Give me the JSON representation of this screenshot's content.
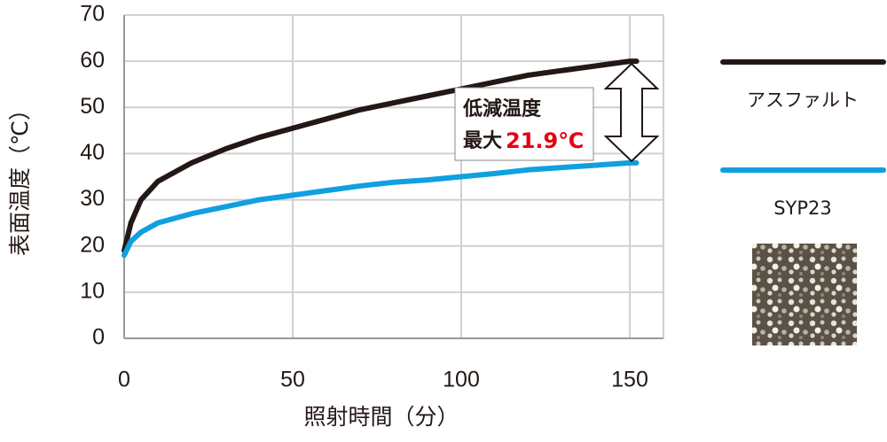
{
  "chart_data": {
    "type": "line",
    "y_label": "表面温度（℃）",
    "x_label": "照射時間（分）",
    "annotations": [
      "低減温度",
      "最大",
      "21.9℃"
    ],
    "x": [
      0,
      2,
      5,
      10,
      20,
      30,
      40,
      50,
      60,
      70,
      80,
      90,
      100,
      110,
      120,
      130,
      140,
      150,
      152
    ],
    "series": [
      {
        "name": "アスファルト",
        "color": "#231815",
        "values": [
          19,
          25,
          30,
          34,
          38,
          41,
          43.5,
          45.5,
          47.5,
          49.5,
          51,
          52.5,
          54,
          55.5,
          57,
          58,
          59,
          60,
          60
        ]
      },
      {
        "name": "SYP23",
        "color": "#0fa0e0",
        "values": [
          18,
          21,
          23,
          25,
          27,
          28.5,
          30,
          31,
          32,
          33,
          33.8,
          34.3,
          35,
          35.7,
          36.5,
          37,
          37.5,
          38,
          38
        ]
      }
    ],
    "xlim": [
      0,
      160
    ],
    "xticks": [
      0,
      50,
      100,
      150
    ],
    "ylim": [
      0,
      70
    ],
    "yticks": [
      0,
      10,
      20,
      30,
      40,
      50,
      60,
      70
    ],
    "grid": true
  }
}
